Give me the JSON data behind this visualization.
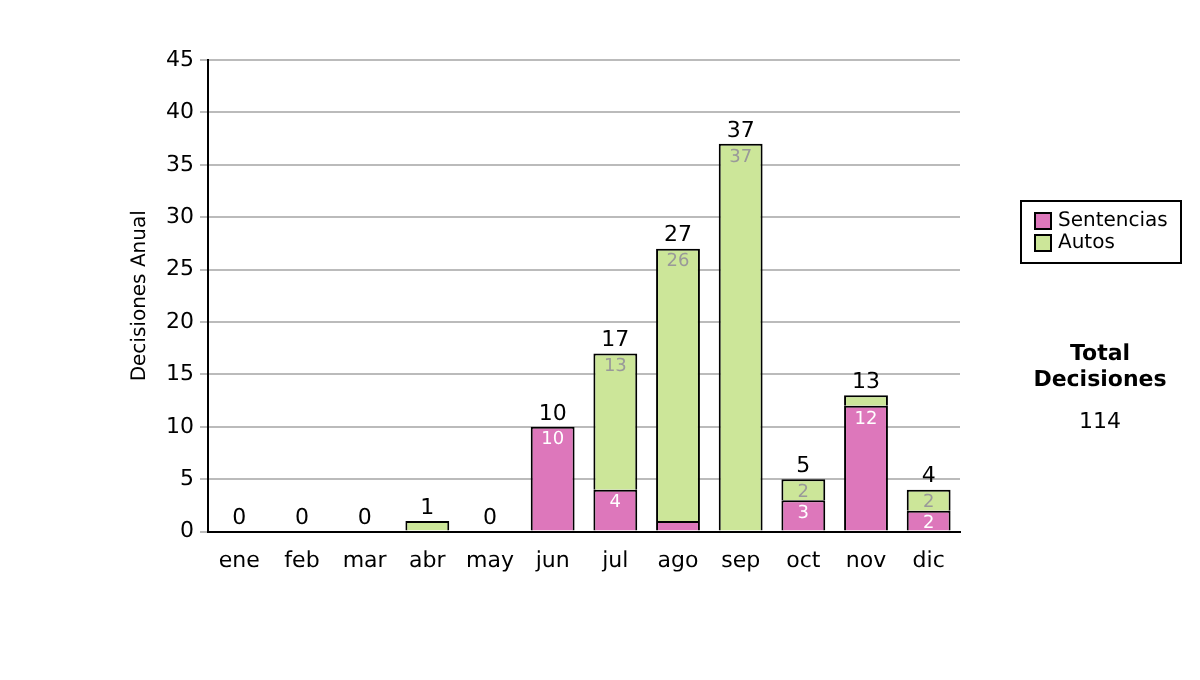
{
  "chart_data": {
    "type": "bar",
    "stacked": true,
    "ylabel": "Decisiones Anual",
    "categories": [
      "ene",
      "feb",
      "mar",
      "abr",
      "may",
      "jun",
      "jul",
      "ago",
      "sep",
      "oct",
      "nov",
      "dic"
    ],
    "series": [
      {
        "name": "Sentencias",
        "color": "#dd77bb",
        "values": [
          0,
          0,
          0,
          0,
          0,
          10,
          4,
          1,
          0,
          3,
          12,
          2
        ],
        "value_labels": [
          null,
          null,
          null,
          null,
          null,
          "10",
          "4",
          null,
          null,
          "3",
          "12",
          "2"
        ]
      },
      {
        "name": "Autos",
        "color": "#cce699",
        "values": [
          0,
          0,
          0,
          1,
          0,
          0,
          13,
          26,
          37,
          2,
          1,
          2
        ],
        "value_labels": [
          null,
          null,
          null,
          null,
          null,
          null,
          "13",
          "26",
          "37",
          "2",
          null,
          "2"
        ]
      }
    ],
    "totals": [
      "0",
      "0",
      "0",
      "1",
      "0",
      "10",
      "17",
      "27",
      "37",
      "5",
      "13",
      "4"
    ],
    "ylim": [
      0,
      45
    ],
    "yticks": [
      0,
      5,
      10,
      15,
      20,
      25,
      30,
      35,
      40,
      45
    ],
    "grid": "y",
    "legend": "right",
    "annotations": [
      "Total Decisiones",
      "114"
    ]
  }
}
